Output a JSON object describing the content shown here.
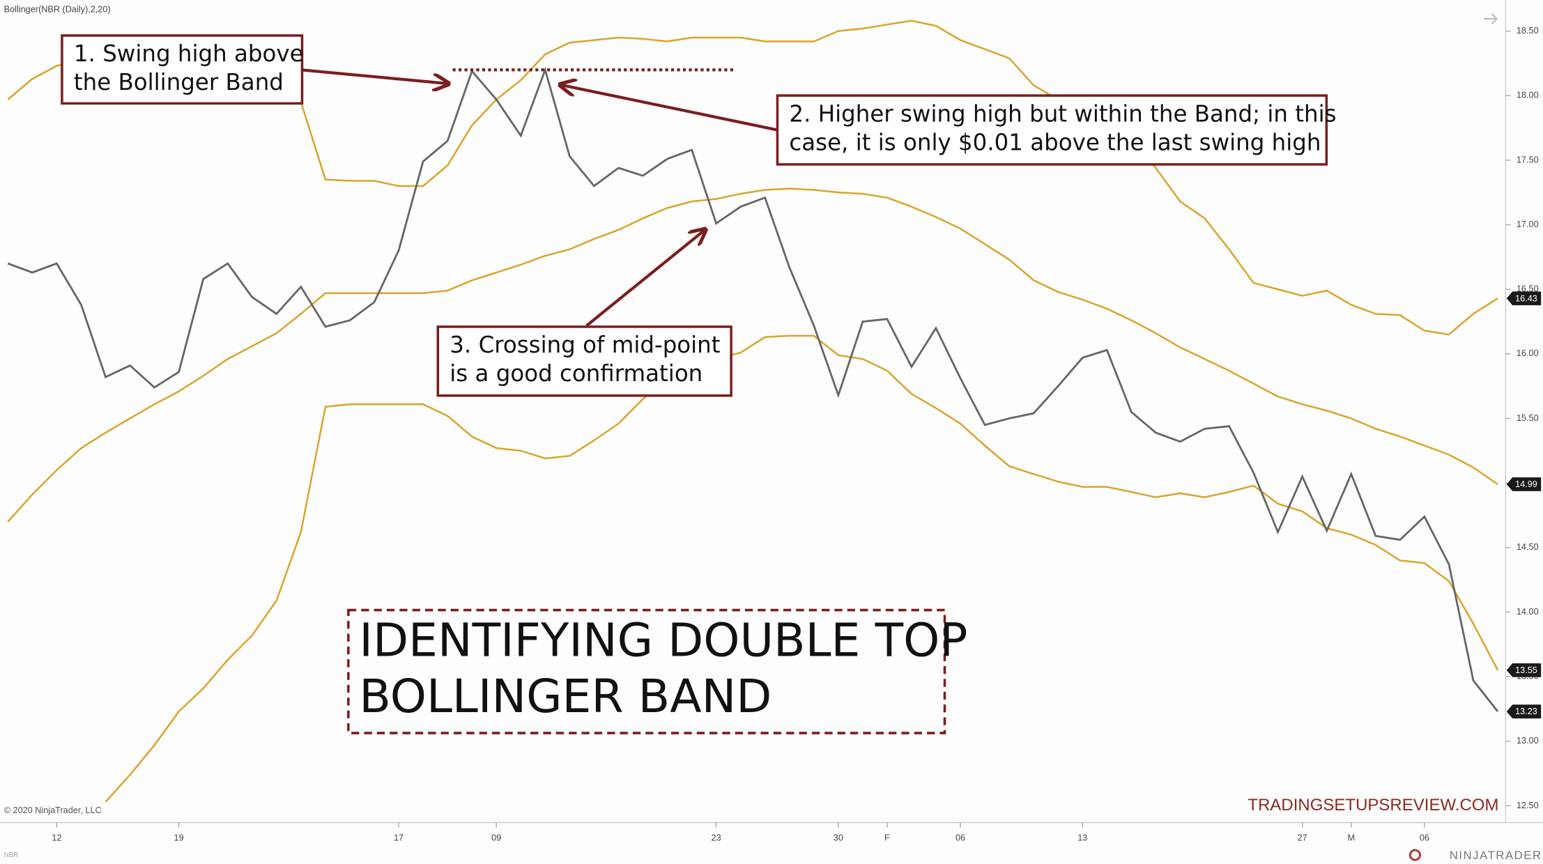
{
  "chart_data": {
    "type": "line",
    "title_lines": [
      "IDENTIFYING DOUBLE TOP",
      "BOLLINGER BAND"
    ],
    "indicator_label": "Bollinger(NBR (Daily),2,20)",
    "copyright": "© 2020 NinjaTrader, LLC",
    "instrument": "NBR",
    "watermark": "TRADINGSETUPSREVIEW.COM",
    "brand": "NINJATRADER",
    "annotations": [
      {
        "text_lines": [
          "1. Swing high above",
          "the Bollinger Band"
        ]
      },
      {
        "text_lines": [
          "2. Higher swing high but within the Band; in this",
          "case, it is only $0.01 above the last swing high"
        ]
      },
      {
        "text_lines": [
          "3. Crossing of mid-point",
          "is a good confirmation"
        ]
      }
    ],
    "reference_level": 18.2,
    "categories": [
      null,
      null,
      "12",
      null,
      null,
      null,
      null,
      "19",
      null,
      null,
      null,
      null,
      null,
      null,
      null,
      null,
      "17",
      null,
      null,
      null,
      "09",
      null,
      null,
      null,
      null,
      null,
      null,
      null,
      null,
      "23",
      null,
      null,
      null,
      null,
      "30",
      null,
      "F",
      null,
      null,
      "06",
      null,
      null,
      null,
      null,
      "13",
      null,
      null,
      null,
      null,
      null,
      null,
      null,
      null,
      "27",
      null,
      "M",
      null,
      null,
      "06",
      null,
      null,
      null
    ],
    "series": [
      {
        "color": "#d9a62e",
        "values": [
          17.97,
          18.13,
          18.23,
          18.28,
          18.3,
          18.3,
          18.28,
          18.25,
          18.2,
          18.15,
          18.1,
          18.05,
          17.95,
          17.35,
          17.34,
          17.34,
          17.3,
          17.3,
          17.46,
          17.77,
          17.97,
          18.12,
          18.32,
          18.41,
          18.43,
          18.45,
          18.44,
          18.42,
          18.45,
          18.45,
          18.45,
          18.42,
          18.42,
          18.42,
          18.5,
          18.52,
          18.55,
          18.58,
          18.54,
          18.43,
          18.36,
          18.29,
          18.08,
          17.97,
          17.85,
          17.75,
          17.65,
          17.44,
          17.18,
          17.05,
          16.81,
          16.55,
          16.5,
          16.45,
          16.49,
          16.38,
          16.31,
          16.3,
          16.18,
          16.15,
          16.31,
          16.43
        ]
      },
      {
        "color": "#d9a62e",
        "values": [
          14.7,
          14.91,
          15.1,
          15.27,
          15.39,
          15.5,
          15.61,
          15.71,
          15.83,
          15.96,
          16.06,
          16.16,
          16.31,
          16.47,
          16.47,
          16.47,
          16.47,
          16.47,
          16.49,
          16.57,
          16.63,
          16.69,
          16.76,
          16.81,
          16.89,
          16.96,
          17.05,
          17.13,
          17.18,
          17.2,
          17.24,
          17.27,
          17.28,
          17.27,
          17.25,
          17.24,
          17.21,
          17.14,
          17.06,
          16.97,
          16.85,
          16.73,
          16.57,
          16.48,
          16.42,
          16.35,
          16.26,
          16.16,
          16.05,
          15.96,
          15.87,
          15.77,
          15.67,
          15.61,
          15.56,
          15.5,
          15.42,
          15.36,
          15.29,
          15.22,
          15.12,
          14.99
        ]
      },
      {
        "color": "#d9a62e",
        "values": [
          null,
          null,
          null,
          null,
          12.53,
          12.74,
          12.97,
          13.23,
          13.41,
          13.63,
          13.82,
          14.09,
          14.62,
          15.59,
          15.61,
          15.61,
          15.61,
          15.61,
          15.52,
          15.36,
          15.27,
          15.25,
          15.19,
          15.21,
          15.33,
          15.46,
          15.65,
          15.8,
          15.9,
          15.96,
          16.01,
          16.13,
          16.14,
          16.14,
          15.99,
          15.96,
          15.87,
          15.69,
          15.58,
          15.46,
          15.29,
          15.13,
          15.07,
          15.01,
          14.97,
          14.97,
          14.93,
          14.89,
          14.92,
          14.89,
          14.93,
          14.98,
          14.84,
          14.78,
          14.65,
          14.6,
          14.52,
          14.4,
          14.38,
          14.24,
          13.91,
          13.55
        ]
      },
      {
        "color": "#666666",
        "values": [
          16.7,
          16.63,
          16.7,
          16.38,
          15.82,
          15.91,
          15.74,
          15.86,
          16.58,
          16.7,
          16.44,
          16.31,
          16.52,
          16.21,
          16.26,
          16.4,
          16.8,
          17.49,
          17.65,
          18.19,
          17.97,
          17.69,
          18.2,
          17.53,
          17.3,
          17.44,
          17.38,
          17.51,
          17.58,
          17.01,
          17.14,
          17.21,
          16.67,
          16.22,
          15.68,
          16.25,
          16.27,
          15.9,
          16.2,
          15.81,
          15.45,
          15.5,
          15.54,
          15.75,
          15.97,
          16.03,
          15.55,
          15.39,
          15.32,
          15.42,
          15.44,
          15.08,
          14.62,
          15.05,
          14.63,
          15.07,
          14.59,
          14.56,
          14.74,
          14.37,
          13.47,
          13.23
        ]
      }
    ],
    "ylim": [
      12.37,
      18.74
    ],
    "yticks": [
      {
        "value": 12.5,
        "label": "12.50"
      },
      {
        "value": 13,
        "label": "13.00"
      },
      {
        "value": 13.5,
        "label": "13.50"
      },
      {
        "value": 14,
        "label": "14.00"
      },
      {
        "value": 14.5,
        "label": "14.50"
      },
      {
        "value": 15,
        "label": "15.00"
      },
      {
        "value": 15.5,
        "label": "15.50"
      },
      {
        "value": 16,
        "label": "16.00"
      },
      {
        "value": 16.5,
        "label": "16.50"
      },
      {
        "value": 17,
        "label": "17.00"
      },
      {
        "value": 17.5,
        "label": "17.50"
      },
      {
        "value": 18,
        "label": "18.00"
      },
      {
        "value": 18.5,
        "label": "18.50"
      }
    ],
    "annotation_color": "#7b1e1e"
  }
}
